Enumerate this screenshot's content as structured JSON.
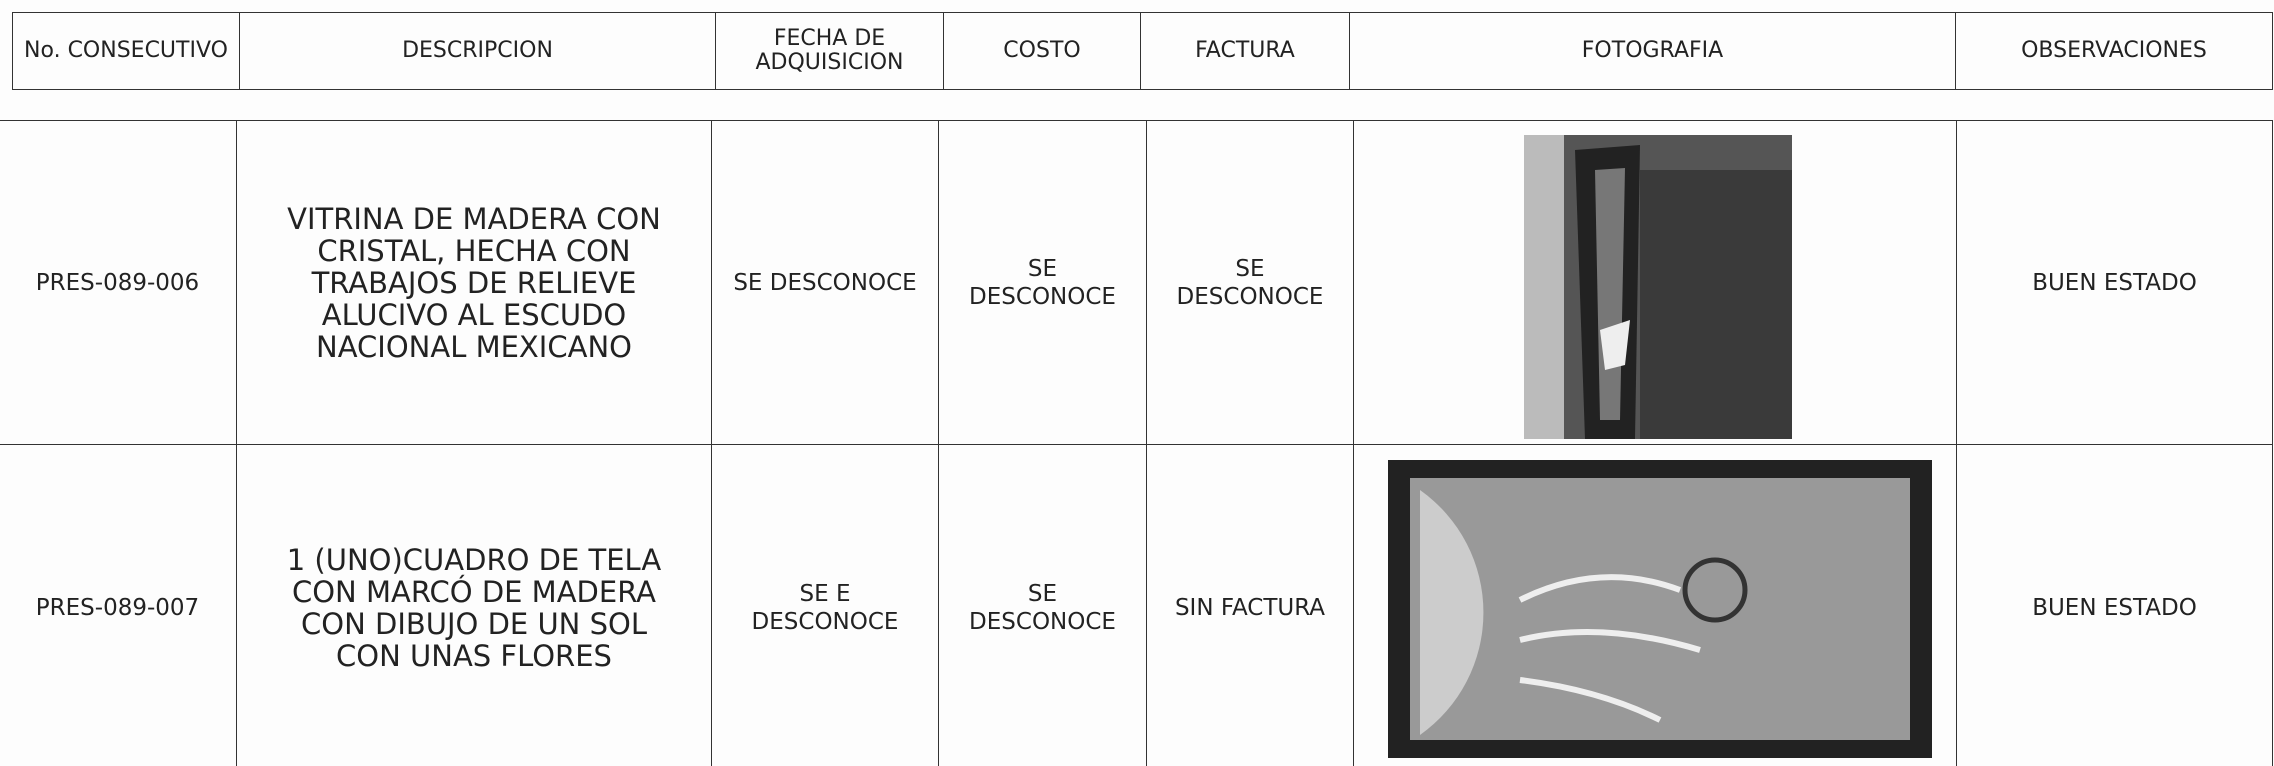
{
  "header": {
    "columns": [
      "No. CONSECUTIVO",
      "DESCRIPCION",
      "FECHA DE ADQUISICION",
      "COSTO",
      "FACTURA",
      "FOTOGRAFIA",
      "OBSERVACIONES"
    ]
  },
  "rows": [
    {
      "consecutivo": "PRES-089-006",
      "descripcion": "VITRINA DE MADERA CON CRISTAL, HECHA CON TRABAJOS DE RELIEVE ALUCIVO AL ESCUDO NACIONAL MEXICANO",
      "fecha": "SE DESCONOCE",
      "costo": "SE DESCONOCE",
      "factura": "SE DESCONOCE",
      "observaciones": "BUEN ESTADO"
    },
    {
      "consecutivo": "PRES-089-007",
      "descripcion": "1 (UNO)CUADRO DE TELA CON MARCÓ DE MADERA CON DIBUJO DE UN SOL CON UNAS FLORES",
      "fecha": "SE E DESCONOCE",
      "costo": "SE DESCONOCE",
      "factura": "SIN FACTURA",
      "observaciones": "BUEN ESTADO"
    }
  ]
}
